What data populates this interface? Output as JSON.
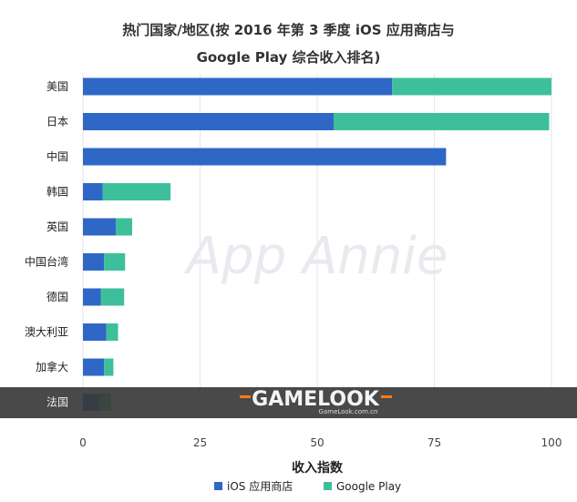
{
  "title_line1": "热门国家/地区(按 2016 年第 3 季度 iOS 应用商店与",
  "title_line2": "Google Play 综合收入排名)",
  "watermark": "App Annie",
  "overlay_band": {
    "brand": "GAMELOOK",
    "site": "GameLook.com.cn",
    "accent": "#ff7a1a"
  },
  "chart_data": {
    "type": "bar",
    "orientation": "horizontal",
    "stacked": true,
    "xlabel": "收入指数",
    "ylabel": "",
    "xlim": [
      0,
      100
    ],
    "xticks": [
      0,
      25,
      50,
      75,
      100
    ],
    "grid": true,
    "legend_position": "bottom",
    "categories": [
      "美国",
      "日本",
      "中国",
      "韩国",
      "英国",
      "中国台湾",
      "德国",
      "澳大利亚",
      "加拿大",
      "法国"
    ],
    "series": [
      {
        "name": "iOS 应用商店",
        "color": "#2f67c7",
        "values": [
          66,
          53.5,
          77.5,
          4.2,
          7,
          4.5,
          3.8,
          5,
          4.5,
          3.5
        ]
      },
      {
        "name": "Google Play",
        "color": "#3dbf9c",
        "values": [
          34,
          46,
          0,
          14.5,
          3.5,
          4.5,
          5,
          2.5,
          2,
          2.5
        ]
      }
    ]
  }
}
